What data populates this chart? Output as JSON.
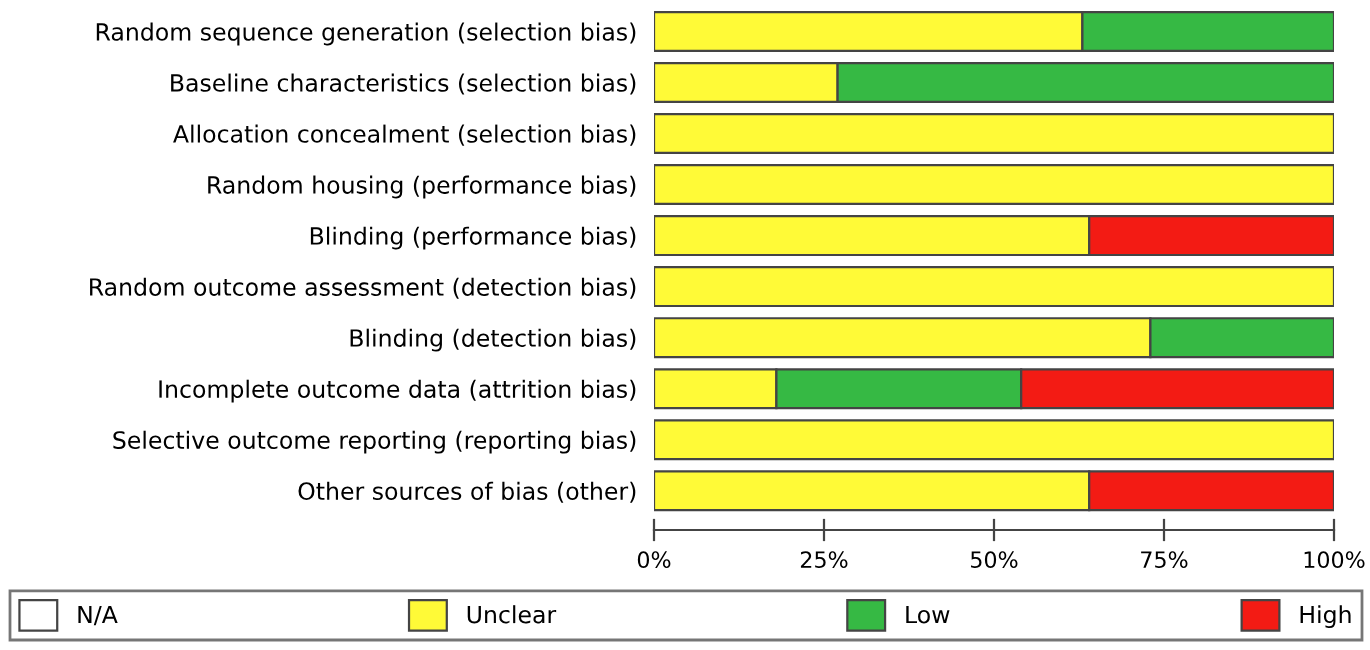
{
  "chart_data": {
    "type": "bar",
    "orientation": "horizontal",
    "stacked": true,
    "categories": [
      "Random sequence generation (selection bias)",
      "Baseline characteristics (selection bias)",
      "Allocation concealment (selection bias)",
      "Random housing (performance bias)",
      "Blinding (performance bias)",
      "Random outcome assessment (detection bias)",
      "Blinding (detection bias)",
      "Incomplete outcome data (attrition bias)",
      "Selective outcome reporting (reporting bias)",
      "Other sources of bias (other)"
    ],
    "series": [
      {
        "name": "N/A",
        "color": "#ffffff",
        "values": [
          0,
          0,
          0,
          0,
          0,
          0,
          0,
          0,
          0,
          0
        ]
      },
      {
        "name": "Unclear",
        "color": "#fffa37",
        "values": [
          63,
          27,
          100,
          100,
          64,
          100,
          73,
          18,
          100,
          64
        ]
      },
      {
        "name": "Low",
        "color": "#36b944",
        "values": [
          37,
          73,
          0,
          0,
          0,
          0,
          27,
          36,
          0,
          0
        ]
      },
      {
        "name": "High",
        "color": "#f31b14",
        "values": [
          0,
          0,
          0,
          0,
          36,
          0,
          0,
          46,
          0,
          36
        ]
      }
    ],
    "xlim": [
      0,
      100
    ],
    "xticks": [
      {
        "value": 0,
        "label": "0%"
      },
      {
        "value": 25,
        "label": "25%"
      },
      {
        "value": 50,
        "label": "50%"
      },
      {
        "value": 75,
        "label": "75%"
      },
      {
        "value": 100,
        "label": "100%"
      }
    ],
    "grid": false,
    "legend": "bottom"
  }
}
